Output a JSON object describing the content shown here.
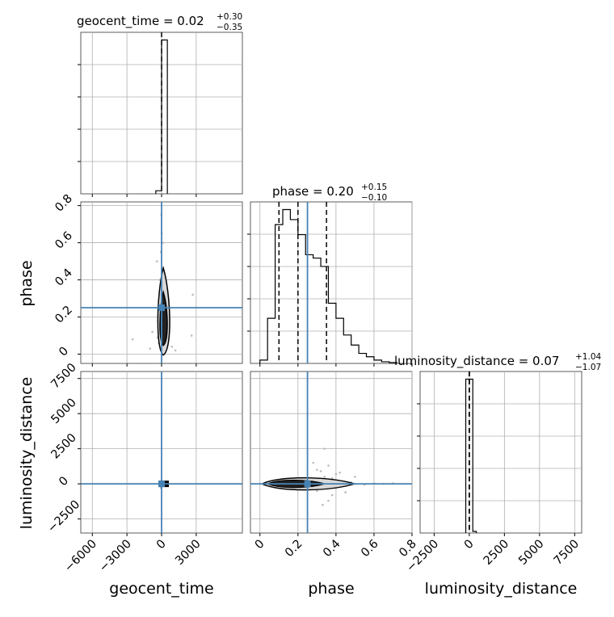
{
  "figure": {
    "type": "corner-plot",
    "truth_color": "#4682b4",
    "hist_color": "#000000",
    "grid": true
  },
  "titles": {
    "geocent_time": {
      "base": "geocent_time = 0.02",
      "plus": "+0.30",
      "minus": "−0.35"
    },
    "phase": {
      "base": "phase = 0.20",
      "plus": "+0.15",
      "minus": "−0.10"
    },
    "luminosity_distance": {
      "base": "luminosity_distance = 0.07",
      "plus": "+1.04",
      "minus": "−1.07"
    }
  },
  "axis_labels": {
    "x0": "geocent_time",
    "x1": "phase",
    "x2": "luminosity_distance",
    "y1": "phase",
    "y2": "luminosity_distance"
  },
  "chart_data": [
    {
      "type": "bar",
      "panel": "hist-geocent_time",
      "title": "geocent_time = 0.02 +0.30 −0.35",
      "xlim": [
        -7000,
        7000
      ],
      "xticks": [
        -6000,
        -3000,
        0,
        3000
      ],
      "bin_edges": [
        -500,
        0,
        500
      ],
      "counts": [
        0.02,
        1.0
      ],
      "truth": 0,
      "quantile_lines": [
        0.02
      ],
      "grid": true
    },
    {
      "type": "bar",
      "panel": "hist-phase",
      "title": "phase = 0.20 +0.15 −0.10",
      "xlim": [
        -0.05,
        0.8
      ],
      "xticks": [
        0.0,
        0.2,
        0.4,
        0.6,
        0.8
      ],
      "bin_edges": [
        0.0,
        0.04,
        0.08,
        0.12,
        0.16,
        0.2,
        0.24,
        0.28,
        0.32,
        0.36,
        0.4,
        0.44,
        0.48,
        0.52,
        0.56,
        0.6,
        0.64,
        0.68,
        0.72
      ],
      "counts": [
        0.02,
        0.27,
        0.83,
        0.92,
        0.86,
        0.77,
        0.65,
        0.63,
        0.58,
        0.36,
        0.27,
        0.17,
        0.11,
        0.06,
        0.04,
        0.02,
        0.01,
        0.005
      ],
      "quantile_lines": [
        0.1,
        0.2,
        0.35
      ],
      "truth": 0.25,
      "grid": true
    },
    {
      "type": "bar",
      "panel": "hist-luminosity_distance",
      "title": "luminosity_distance = 0.07 +1.04 −1.07",
      "xlim": [
        -3500,
        8000
      ],
      "xticks": [
        -2500,
        0,
        2500,
        5000,
        7500
      ],
      "bin_edges": [
        -250,
        0,
        250,
        500
      ],
      "counts": [
        0.96,
        0.96,
        0.01
      ],
      "truth": 0,
      "quantile_lines": [
        -1,
        0.07,
        1.1
      ],
      "grid": true
    },
    {
      "type": "scatter",
      "panel": "2d-geocent_time-phase",
      "xlim": [
        -7000,
        7000
      ],
      "ylim": [
        -0.05,
        0.82
      ],
      "yticks": [
        0.0,
        0.2,
        0.4,
        0.6,
        0.8
      ],
      "points": [
        [
          -50,
          0.1
        ],
        [
          100,
          0.15
        ],
        [
          -200,
          0.2
        ],
        [
          300,
          0.3
        ],
        [
          0,
          0.05
        ],
        [
          150,
          0.12
        ],
        [
          -100,
          0.25
        ],
        [
          50,
          0.35
        ],
        [
          200,
          0.08
        ],
        [
          -300,
          0.18
        ],
        [
          400,
          0.22
        ],
        [
          -150,
          0.4
        ],
        [
          80,
          0.45
        ],
        [
          -60,
          0.55
        ],
        [
          120,
          0.6
        ],
        [
          -20,
          0.75
        ],
        [
          -2500,
          0.08
        ],
        [
          2600,
          0.1
        ],
        [
          2700,
          0.32
        ],
        [
          -1000,
          0.03
        ],
        [
          900,
          0.04
        ],
        [
          1200,
          0.02
        ],
        [
          -800,
          0.12
        ],
        [
          600,
          0.28
        ],
        [
          -400,
          0.5
        ],
        [
          250,
          0.02
        ],
        [
          -250,
          0.06
        ],
        [
          350,
          0.17
        ],
        [
          10,
          0.65
        ],
        [
          -80,
          0.3
        ],
        [
          60,
          0.2
        ],
        [
          -120,
          0.14
        ],
        [
          180,
          0.38
        ],
        [
          -350,
          0.09
        ]
      ],
      "contour_center": [
        150,
        0.16
      ],
      "truth": [
        0,
        0.25
      ],
      "grid": true
    },
    {
      "type": "scatter",
      "panel": "2d-geocent_time-luminosity_distance",
      "xlim": [
        -7000,
        7000
      ],
      "ylim": [
        -3500,
        8000
      ],
      "yticks": [
        -2500,
        0,
        2500,
        5000,
        7500
      ],
      "points": [
        [
          0,
          0
        ],
        [
          100,
          50
        ],
        [
          -80,
          -40
        ],
        [
          200,
          20
        ],
        [
          300,
          -20
        ],
        [
          -150,
          10
        ],
        [
          50,
          200
        ],
        [
          400,
          0
        ],
        [
          -50,
          -300
        ]
      ],
      "truth": [
        0,
        0
      ],
      "grid": true
    },
    {
      "type": "scatter",
      "panel": "2d-phase-luminosity_distance",
      "xlim": [
        -0.05,
        0.8
      ],
      "ylim": [
        -3500,
        8000
      ],
      "points": [
        [
          0.05,
          0
        ],
        [
          0.08,
          -50
        ],
        [
          0.1,
          100
        ],
        [
          0.12,
          -100
        ],
        [
          0.15,
          50
        ],
        [
          0.18,
          0
        ],
        [
          0.2,
          -80
        ],
        [
          0.22,
          120
        ],
        [
          0.25,
          -20
        ],
        [
          0.28,
          60
        ],
        [
          0.3,
          -200
        ],
        [
          0.32,
          300
        ],
        [
          0.35,
          0
        ],
        [
          0.38,
          400
        ],
        [
          0.4,
          -300
        ],
        [
          0.42,
          200
        ],
        [
          0.45,
          -150
        ],
        [
          0.48,
          100
        ],
        [
          0.5,
          0
        ],
        [
          0.55,
          -60
        ],
        [
          0.6,
          40
        ],
        [
          0.65,
          0
        ],
        [
          0.28,
          1500
        ],
        [
          0.3,
          1000
        ],
        [
          0.32,
          900
        ],
        [
          0.36,
          1300
        ],
        [
          0.34,
          2500
        ],
        [
          0.38,
          -800
        ],
        [
          0.36,
          -1200
        ],
        [
          0.33,
          -1500
        ],
        [
          0.4,
          700
        ],
        [
          0.34,
          500
        ],
        [
          0.3,
          -500
        ],
        [
          0.42,
          800
        ],
        [
          0.7,
          30
        ],
        [
          0.0,
          10
        ],
        [
          0.02,
          -20
        ],
        [
          0.45,
          -600
        ],
        [
          0.5,
          500
        ]
      ],
      "truth": [
        0.25,
        0
      ],
      "grid": true
    }
  ]
}
